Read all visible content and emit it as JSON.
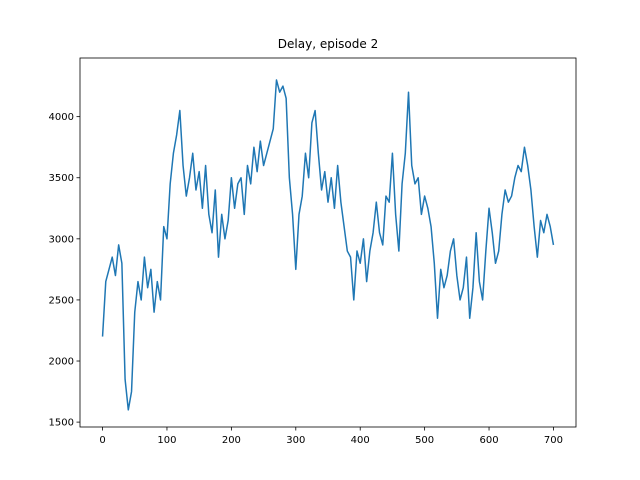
{
  "chart_data": {
    "type": "line",
    "title": "Delay, episode 2",
    "x": [
      0,
      5,
      10,
      15,
      20,
      25,
      30,
      35,
      40,
      45,
      50,
      55,
      60,
      65,
      70,
      75,
      80,
      85,
      90,
      95,
      100,
      105,
      110,
      115,
      120,
      125,
      130,
      135,
      140,
      145,
      150,
      155,
      160,
      165,
      170,
      175,
      180,
      185,
      190,
      195,
      200,
      205,
      210,
      215,
      220,
      225,
      230,
      235,
      240,
      245,
      250,
      255,
      260,
      265,
      270,
      275,
      280,
      285,
      290,
      295,
      300,
      305,
      310,
      315,
      320,
      325,
      330,
      335,
      340,
      345,
      350,
      355,
      360,
      365,
      370,
      375,
      380,
      385,
      390,
      395,
      400,
      405,
      410,
      415,
      420,
      425,
      430,
      435,
      440,
      445,
      450,
      455,
      460,
      465,
      470,
      475,
      480,
      485,
      490,
      495,
      500,
      505,
      510,
      515,
      520,
      525,
      530,
      535,
      540,
      545,
      550,
      555,
      560,
      565,
      570,
      575,
      580,
      585,
      590,
      595,
      600,
      605,
      610,
      615,
      620,
      625,
      630,
      635,
      640,
      645,
      650,
      655,
      660,
      665,
      670,
      675,
      680,
      685,
      690,
      695,
      700
    ],
    "values": [
      2200,
      2650,
      2750,
      2850,
      2700,
      2950,
      2800,
      1850,
      1600,
      1750,
      2400,
      2650,
      2500,
      2850,
      2600,
      2750,
      2400,
      2650,
      2500,
      3100,
      3000,
      3450,
      3700,
      3850,
      4050,
      3600,
      3350,
      3500,
      3700,
      3400,
      3550,
      3250,
      3600,
      3200,
      3050,
      3400,
      2850,
      3200,
      3000,
      3150,
      3500,
      3250,
      3450,
      3500,
      3200,
      3600,
      3450,
      3750,
      3550,
      3800,
      3600,
      3700,
      3800,
      3900,
      4300,
      4200,
      4250,
      4150,
      3500,
      3200,
      2750,
      3200,
      3350,
      3700,
      3500,
      3950,
      4050,
      3700,
      3400,
      3550,
      3300,
      3500,
      3250,
      3600,
      3300,
      3100,
      2900,
      2850,
      2500,
      2900,
      2800,
      3000,
      2650,
      2900,
      3050,
      3300,
      3050,
      2950,
      3350,
      3300,
      3700,
      3200,
      2900,
      3450,
      3700,
      4200,
      3600,
      3450,
      3500,
      3200,
      3350,
      3250,
      3100,
      2800,
      2350,
      2750,
      2600,
      2700,
      2900,
      3000,
      2700,
      2500,
      2600,
      2850,
      2350,
      2600,
      3050,
      2650,
      2500,
      2900,
      3250,
      3050,
      2800,
      2900,
      3200,
      3400,
      3300,
      3350,
      3500,
      3600,
      3550,
      3750,
      3600,
      3400,
      3100,
      2850,
      3150,
      3050,
      3200,
      3100,
      2950
    ],
    "color": "#1f77b4",
    "xlim": [
      -35,
      735
    ],
    "ylim": [
      1460,
      4480
    ],
    "xticks": [
      0,
      100,
      200,
      300,
      400,
      500,
      600,
      700
    ],
    "yticks": [
      1500,
      2000,
      2500,
      3000,
      3500,
      4000
    ]
  }
}
